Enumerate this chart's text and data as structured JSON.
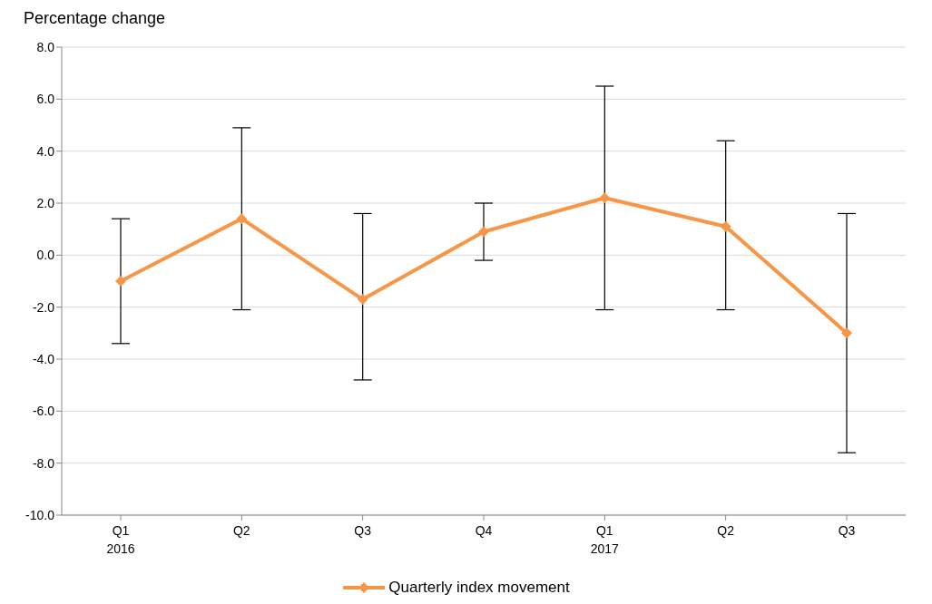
{
  "chart_data": {
    "type": "line",
    "ylabel": "Percentage change",
    "categories": [
      "Q1\n2016",
      "Q2",
      "Q3",
      "Q4",
      "Q1\n2017",
      "Q2",
      "Q3"
    ],
    "series": [
      {
        "name": "Quarterly index movement",
        "color": "#f79646",
        "values": [
          -1.0,
          1.4,
          -1.7,
          0.9,
          2.2,
          1.1,
          -3.0
        ],
        "errors": [
          [
            -3.4,
            1.4
          ],
          [
            -2.1,
            4.9
          ],
          [
            -4.8,
            1.6
          ],
          [
            -0.2,
            2.0
          ],
          [
            -2.1,
            6.5
          ],
          [
            -2.1,
            4.4
          ],
          [
            -7.6,
            1.6
          ]
        ]
      }
    ],
    "ylim": [
      -10,
      8
    ],
    "yticks": [
      {
        "value": -10,
        "label": "-10.0"
      },
      {
        "value": -8,
        "label": "-8.0"
      },
      {
        "value": -6,
        "label": "-6.0"
      },
      {
        "value": -4,
        "label": "-4.0"
      },
      {
        "value": -2,
        "label": "-2.0"
      },
      {
        "value": 0,
        "label": "0.0"
      },
      {
        "value": 2,
        "label": "2.0"
      },
      {
        "value": 4,
        "label": "4.0"
      },
      {
        "value": 6,
        "label": "6.0"
      },
      {
        "value": 8,
        "label": "8.0"
      }
    ],
    "grid": "y",
    "legend": "bottom",
    "marker": "diamond",
    "line_style": "solid"
  }
}
